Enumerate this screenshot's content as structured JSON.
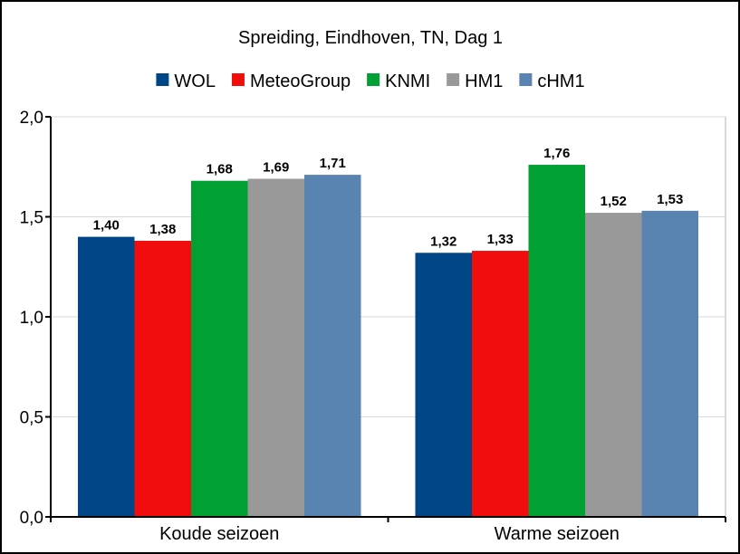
{
  "chart_data": {
    "type": "bar",
    "title": "Spreiding, Eindhoven, TN, Dag 1",
    "xlabel": "",
    "ylabel": "",
    "categories": [
      "Koude seizoen",
      "Warme seizoen"
    ],
    "series": [
      {
        "name": "WOL",
        "color": "#004586",
        "values": [
          1.4,
          1.32
        ],
        "labels": [
          "1,40",
          "1,32"
        ]
      },
      {
        "name": "MeteoGroup",
        "color": "#f10d0c",
        "values": [
          1.38,
          1.33
        ],
        "labels": [
          "1,38",
          "1,33"
        ]
      },
      {
        "name": "KNMI",
        "color": "#00a033",
        "values": [
          1.68,
          1.76
        ],
        "labels": [
          "1,68",
          "1,76"
        ]
      },
      {
        "name": "HM1",
        "color": "#999999",
        "values": [
          1.69,
          1.52
        ],
        "labels": [
          "1,69",
          "1,52"
        ]
      },
      {
        "name": "cHM1",
        "color": "#5983b0",
        "values": [
          1.71,
          1.53
        ],
        "labels": [
          "1,71",
          "1,53"
        ]
      }
    ],
    "ylim": [
      0,
      2.0
    ],
    "yticks": [
      0,
      0.5,
      1.0,
      1.5,
      2.0
    ],
    "ytick_labels": [
      "0,0",
      "0,5",
      "1,0",
      "1,5",
      "2,0"
    ],
    "grid": true,
    "legend_position": "top"
  }
}
